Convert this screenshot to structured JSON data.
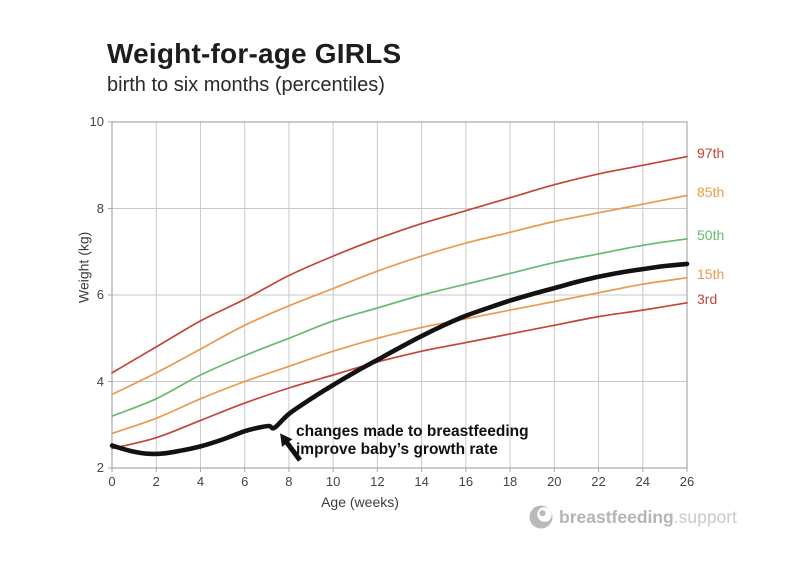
{
  "header": {
    "title": "Weight-for-age GIRLS",
    "subtitle": "birth to six months (percentiles)"
  },
  "chart_data": {
    "type": "line",
    "title": "Weight-for-age GIRLS — birth to six months (percentiles)",
    "xlabel": "Age (weeks)",
    "ylabel": "Weight (kg)",
    "xlim": [
      0,
      26
    ],
    "ylim": [
      2,
      10
    ],
    "grid": true,
    "x_ticks": [
      0,
      2,
      4,
      6,
      8,
      10,
      12,
      14,
      16,
      18,
      20,
      22,
      24,
      26
    ],
    "y_ticks": [
      2,
      4,
      6,
      8,
      10
    ],
    "categories": [
      0,
      2,
      4,
      6,
      8,
      10,
      12,
      14,
      16,
      18,
      20,
      22,
      24,
      26
    ],
    "series": [
      {
        "name": "97th",
        "color": "#c2453a",
        "values": [
          4.2,
          4.8,
          5.4,
          5.9,
          6.45,
          6.9,
          7.3,
          7.65,
          7.95,
          8.25,
          8.55,
          8.8,
          9.0,
          9.2
        ]
      },
      {
        "name": "85th",
        "color": "#eb9a4d",
        "values": [
          3.7,
          4.2,
          4.75,
          5.3,
          5.75,
          6.15,
          6.55,
          6.9,
          7.2,
          7.45,
          7.7,
          7.9,
          8.1,
          8.3
        ]
      },
      {
        "name": "50th",
        "color": "#66bb6f",
        "values": [
          3.2,
          3.6,
          4.15,
          4.6,
          5.0,
          5.4,
          5.7,
          6.0,
          6.25,
          6.5,
          6.75,
          6.95,
          7.15,
          7.3
        ]
      },
      {
        "name": "15th",
        "color": "#eb9a4d",
        "values": [
          2.8,
          3.15,
          3.6,
          4.0,
          4.35,
          4.7,
          5.0,
          5.25,
          5.45,
          5.65,
          5.85,
          6.05,
          6.25,
          6.4
        ]
      },
      {
        "name": "3rd",
        "color": "#c2453a",
        "values": [
          2.45,
          2.7,
          3.1,
          3.5,
          3.85,
          4.15,
          4.45,
          4.7,
          4.9,
          5.1,
          5.3,
          5.5,
          5.65,
          5.82
        ]
      }
    ],
    "baby_series": {
      "name": "baby weight",
      "color": "#121212",
      "points": [
        [
          0,
          2.52
        ],
        [
          0.8,
          2.4
        ],
        [
          1.6,
          2.33
        ],
        [
          2.4,
          2.34
        ],
        [
          3.2,
          2.41
        ],
        [
          4,
          2.5
        ],
        [
          5,
          2.66
        ],
        [
          6,
          2.85
        ],
        [
          6.6,
          2.93
        ],
        [
          7.1,
          2.97
        ],
        [
          7.35,
          2.93
        ],
        [
          8,
          3.25
        ],
        [
          9,
          3.6
        ],
        [
          10,
          3.92
        ],
        [
          11,
          4.22
        ],
        [
          12,
          4.5
        ],
        [
          13,
          4.78
        ],
        [
          14,
          5.05
        ],
        [
          15,
          5.3
        ],
        [
          16,
          5.52
        ],
        [
          17,
          5.7
        ],
        [
          18,
          5.87
        ],
        [
          19,
          6.02
        ],
        [
          20,
          6.16
        ],
        [
          21,
          6.3
        ],
        [
          22,
          6.42
        ],
        [
          23,
          6.52
        ],
        [
          24,
          6.6
        ],
        [
          25,
          6.67
        ],
        [
          26,
          6.72
        ]
      ]
    }
  },
  "annotation": {
    "line1": "changes made to breastfeeding",
    "line2": "improve baby’s growth rate",
    "arrow": {
      "from_week": 8.5,
      "from_kg": 2.18,
      "to_week": 7.6,
      "to_kg": 2.8
    }
  },
  "logo": {
    "brand": "breastfeeding",
    "suffix": ".support"
  },
  "colors": {
    "grid": "#c9c9c9",
    "axis": "#a8a8a8",
    "tick_text": "#454545",
    "baby_line": "#121212"
  }
}
